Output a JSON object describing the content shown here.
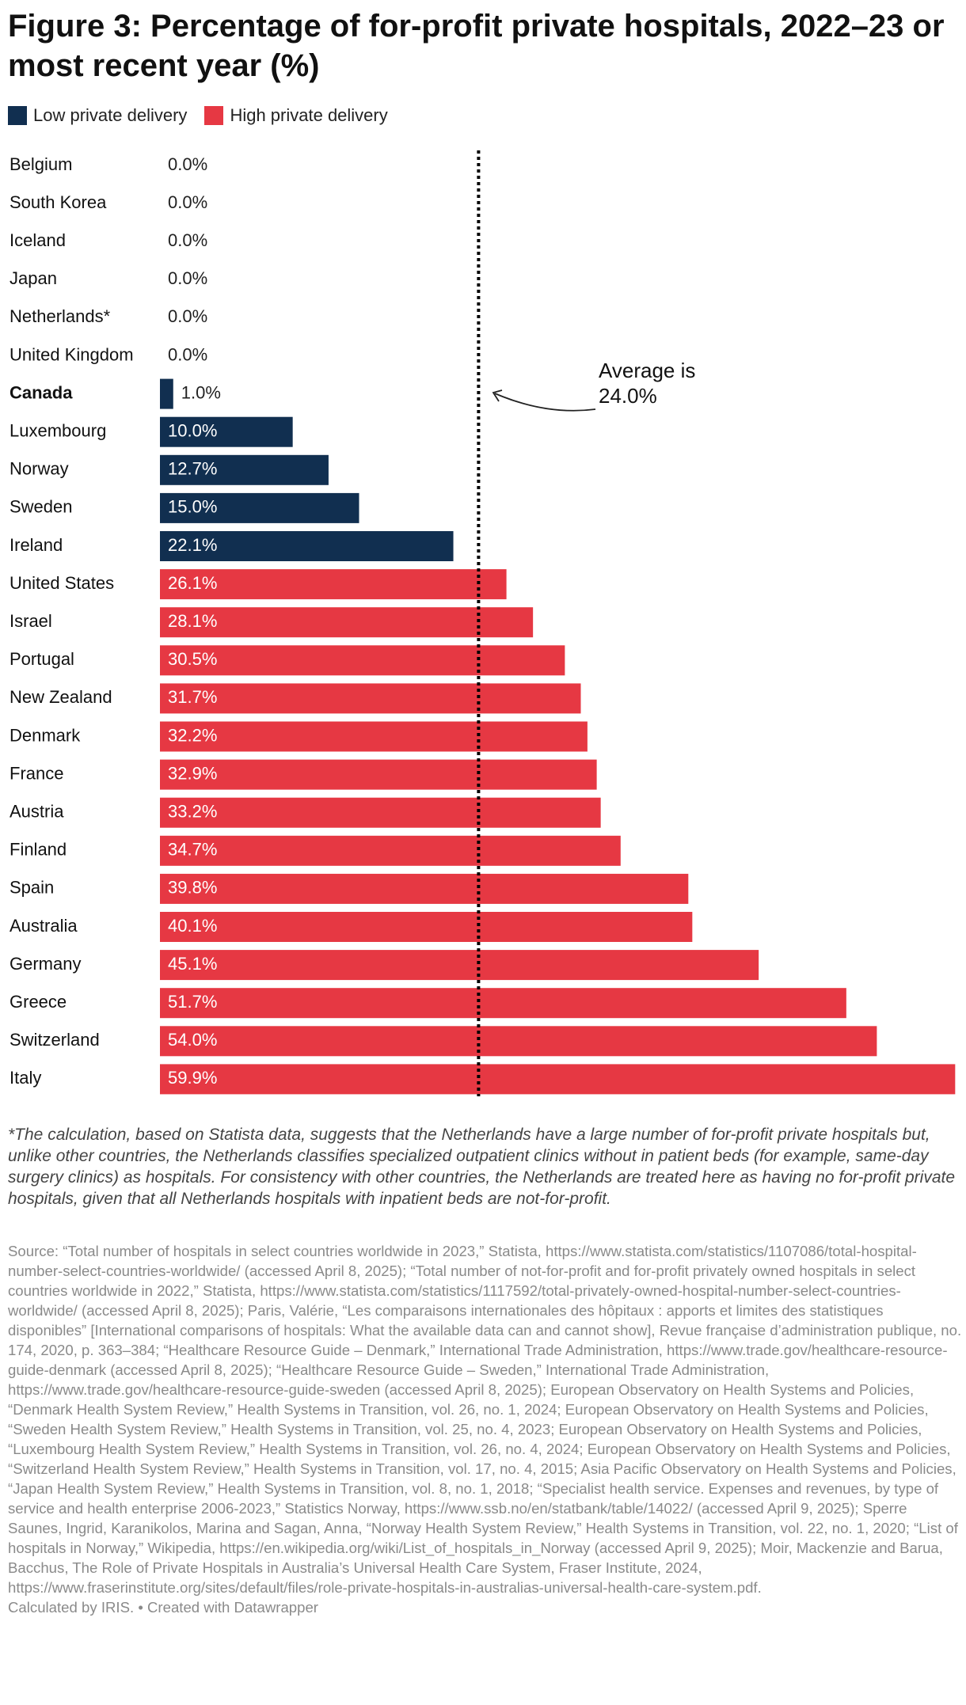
{
  "chart_data": {
    "type": "bar-horizontal",
    "title": "Figure 3: Percentage of for-profit private hospitals, 2022–23 or most recent year (%)",
    "categories": [
      "Belgium",
      "South Korea",
      "Iceland",
      "Japan",
      "Netherlands*",
      "United Kingdom",
      "Canada",
      "Luxembourg",
      "Norway",
      "Sweden",
      "Ireland",
      "United States",
      "Israel",
      "Portugal",
      "New Zealand",
      "Denmark",
      "France",
      "Austria",
      "Finland",
      "Spain",
      "Australia",
      "Germany",
      "Greece",
      "Switzerland",
      "Italy"
    ],
    "bold_category_index": 6,
    "series": [
      {
        "name": "Low private delivery",
        "color": "#112f50",
        "values": [
          0,
          0,
          0,
          0,
          0,
          0,
          1.0,
          10.0,
          12.7,
          15.0,
          22.1,
          null,
          null,
          null,
          null,
          null,
          null,
          null,
          null,
          null,
          null,
          null,
          null,
          null,
          null
        ],
        "value_labels": [
          "0.0%",
          "0.0%",
          "0.0%",
          "0.0%",
          "0.0%",
          "0.0%",
          "1.0%",
          "10.0%",
          "12.7%",
          "15.0%",
          "22.1%",
          null,
          null,
          null,
          null,
          null,
          null,
          null,
          null,
          null,
          null,
          null,
          null,
          null,
          null
        ]
      },
      {
        "name": "High private delivery",
        "color": "#e63843",
        "values": [
          null,
          null,
          null,
          null,
          null,
          null,
          null,
          null,
          null,
          null,
          null,
          26.1,
          28.1,
          30.5,
          31.7,
          32.2,
          32.9,
          33.2,
          34.7,
          39.8,
          40.1,
          45.1,
          51.7,
          54.0,
          59.9
        ],
        "value_labels": [
          null,
          null,
          null,
          null,
          null,
          null,
          null,
          null,
          null,
          null,
          null,
          "26.1%",
          "28.1%",
          "30.5%",
          "31.7%",
          "32.2%",
          "32.9%",
          "33.2%",
          "34.7%",
          "39.8%",
          "40.1%",
          "45.1%",
          "51.7%",
          "54.0%",
          "59.9%"
        ]
      }
    ],
    "xlim": [
      0,
      60
    ],
    "average": {
      "value": 24.0,
      "lines": [
        "Average is",
        "24.0%"
      ]
    },
    "footnote": "*The calculation, based on Statista data, suggests that the Netherlands have a large number of for-profit private hospitals but, unlike other countries, the Netherlands classifies specialized outpatient clinics without in patient beds (for example, same-day surgery clinics) as hospitals. For consistency with other countries, the Netherlands are treated here as having no for-profit private hospitals, given that all Netherlands hospitals with inpatient beds are not-for-profit.",
    "source": "Source: “Total number of hospitals in select countries worldwide in 2023,” Statista, https://www.statista.com/statistics/1107086/total-hospital-number-select-countries-worldwide/ (accessed April 8, 2025); “Total number of not-for-profit and for-profit privately owned hospitals in select countries worldwide in 2022,” Statista, https://www.statista.com/statistics/1117592/total-privately-owned-hospital-number-select-countries-worldwide/ (accessed April 8, 2025); Paris, Valérie, “Les comparaisons internationales des hôpitaux : apports et limites des statistiques disponibles” [International comparisons of hospitals: What the available data can and cannot show], Revue française d’administration publique, no. 174, 2020, p. 363–384; “Healthcare Resource Guide – Denmark,” International Trade Administration, https://www.trade.gov/healthcare-resource-guide-denmark (accessed April 8, 2025); “Healthcare Resource Guide – Sweden,” International Trade Administration, https://www.trade.gov/healthcare-resource-guide-sweden (accessed April 8, 2025); European Observatory on Health Systems and Policies, “Denmark Health System Review,” Health Systems in Transition, vol. 26, no. 1, 2024; European Observatory on Health Systems and Policies, “Sweden Health System Review,” Health Systems in Transition, vol. 25, no. 4, 2023; European Observatory on Health Systems and Policies, “Luxembourg Health System Review,” Health Systems in Transition, vol. 26, no. 4, 2024; European Observatory on Health Systems and Policies, “Switzerland Health System Review,” Health Systems in Transition, vol. 17, no. 4, 2015; Asia Pacific Observatory on Health Systems and Policies, “Japan Health System Review,” Health Systems in Transition, vol. 8, no. 1, 2018; “Specialist health service. Expenses and revenues, by type of service and health enterprise 2006-2023,” Statistics Norway, https://www.ssb.no/en/statbank/table/14022/ (accessed April 9, 2025); Sperre Saunes, Ingrid, Karanikolos, Marina and Sagan, Anna, “Norway Health System Review,” Health Systems in Transition, vol. 22, no. 1, 2020; “List of hospitals in Norway,” Wikipedia, https://en.wikipedia.org/wiki/List_of_hospitals_in_Norway (accessed April 9, 2025); Moir, Mackenzie and Barua, Bacchus, The Role of Private Hospitals in Australia’s Universal Health Care System, Fraser Institute, 2024, https://www.fraserinstitute.org/sites/default/files/role-private-hospitals-in-australias-universal-health-care-system.pdf.",
    "credit": "Calculated by IRIS. • Created with Datawrapper"
  }
}
